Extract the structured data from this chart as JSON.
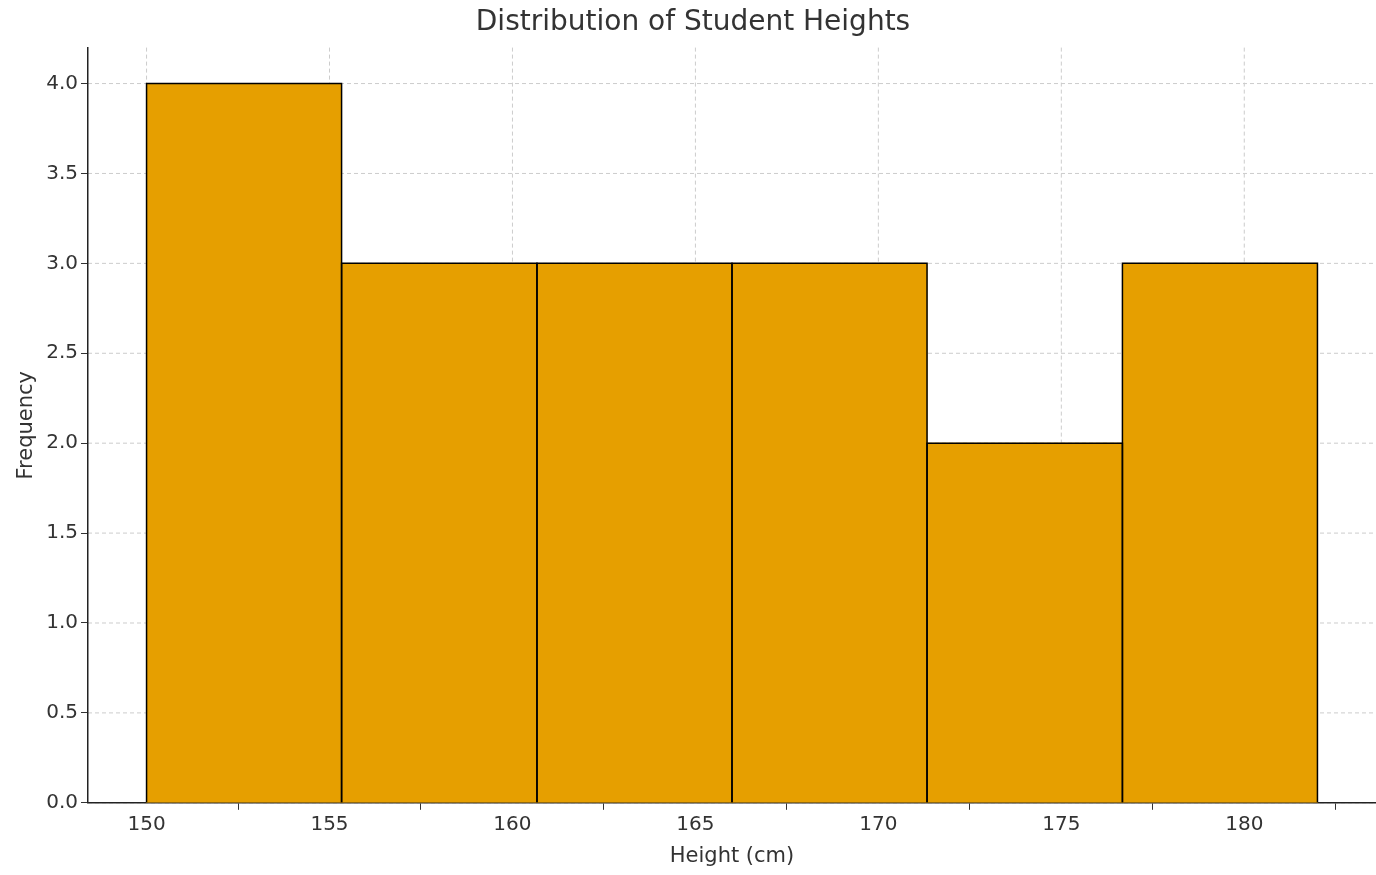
{
  "chart_data": {
    "type": "histogram",
    "title": "Distribution of Student Heights",
    "xlabel": "Height (cm)",
    "ylabel": "Frequency",
    "bins": [
      150,
      155.33,
      160.67,
      166,
      171.33,
      176.67,
      182
    ],
    "values": [
      4,
      3,
      3,
      3,
      2,
      3
    ],
    "color": "#e69f00",
    "xlim": [
      148.4,
      183.6
    ],
    "xticks": [
      150,
      155,
      160,
      165,
      170,
      175,
      180
    ],
    "ylim": [
      0,
      4.2
    ],
    "yticks": [
      {
        "value": 0,
        "label": "0.0"
      },
      {
        "value": 0.5,
        "label": "0.5"
      },
      {
        "value": 1,
        "label": "1.0"
      },
      {
        "value": 1.5,
        "label": "1.5"
      },
      {
        "value": 2,
        "label": "2.0"
      },
      {
        "value": 2.5,
        "label": "2.5"
      },
      {
        "value": 3,
        "label": "3.0"
      },
      {
        "value": 3.5,
        "label": "3.5"
      },
      {
        "value": 4,
        "label": "4.0"
      }
    ],
    "grid": true,
    "legend": false
  }
}
